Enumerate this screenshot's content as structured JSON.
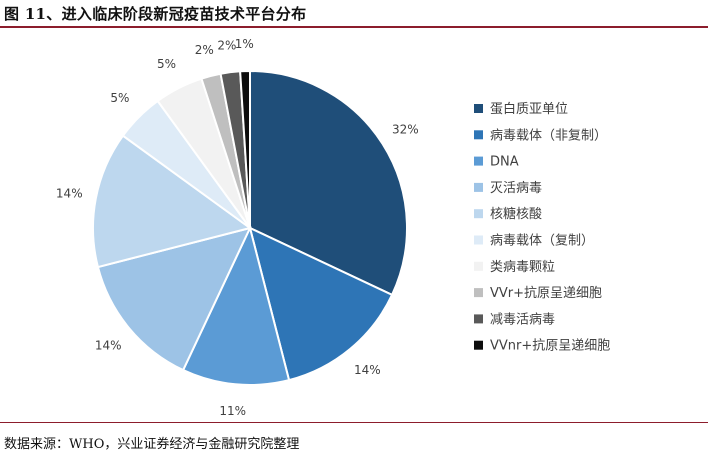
{
  "title": "图 11、进入临床阶段新冠疫苗技术平台分布",
  "source": "数据来源：WHO，兴业证券经济与金融研究院整理",
  "chart_data": {
    "type": "pie",
    "title": "图 11、进入临床阶段新冠疫苗技术平台分布",
    "legend_position": "right",
    "unit": "%",
    "slices": [
      {
        "label": "蛋白质亚单位",
        "value": 32,
        "display": "32%",
        "color": "#1f4e79"
      },
      {
        "label": "病毒载体（非复制）",
        "value": 14,
        "display": "14%",
        "color": "#2e75b6"
      },
      {
        "label": "DNA",
        "value": 11,
        "display": "11%",
        "color": "#5b9bd5"
      },
      {
        "label": "灭活病毒",
        "value": 14,
        "display": "14%",
        "color": "#9dc3e6"
      },
      {
        "label": "核糖核酸",
        "value": 14,
        "display": "14%",
        "color": "#bdd7ee"
      },
      {
        "label": "病毒载体（复制）",
        "value": 5,
        "display": "5%",
        "color": "#deebf7"
      },
      {
        "label": "类病毒颗粒",
        "value": 5,
        "display": "5%",
        "color": "#f2f2f2"
      },
      {
        "label": "VVr+抗原呈递细胞",
        "value": 2,
        "display": "2%",
        "color": "#bfbfbf"
      },
      {
        "label": "减毒活病毒",
        "value": 2,
        "display": "2%",
        "color": "#595959"
      },
      {
        "label": "VVnr+抗原呈递细胞",
        "value": 1,
        "display": "1%",
        "color": "#0d0d0d"
      }
    ]
  }
}
